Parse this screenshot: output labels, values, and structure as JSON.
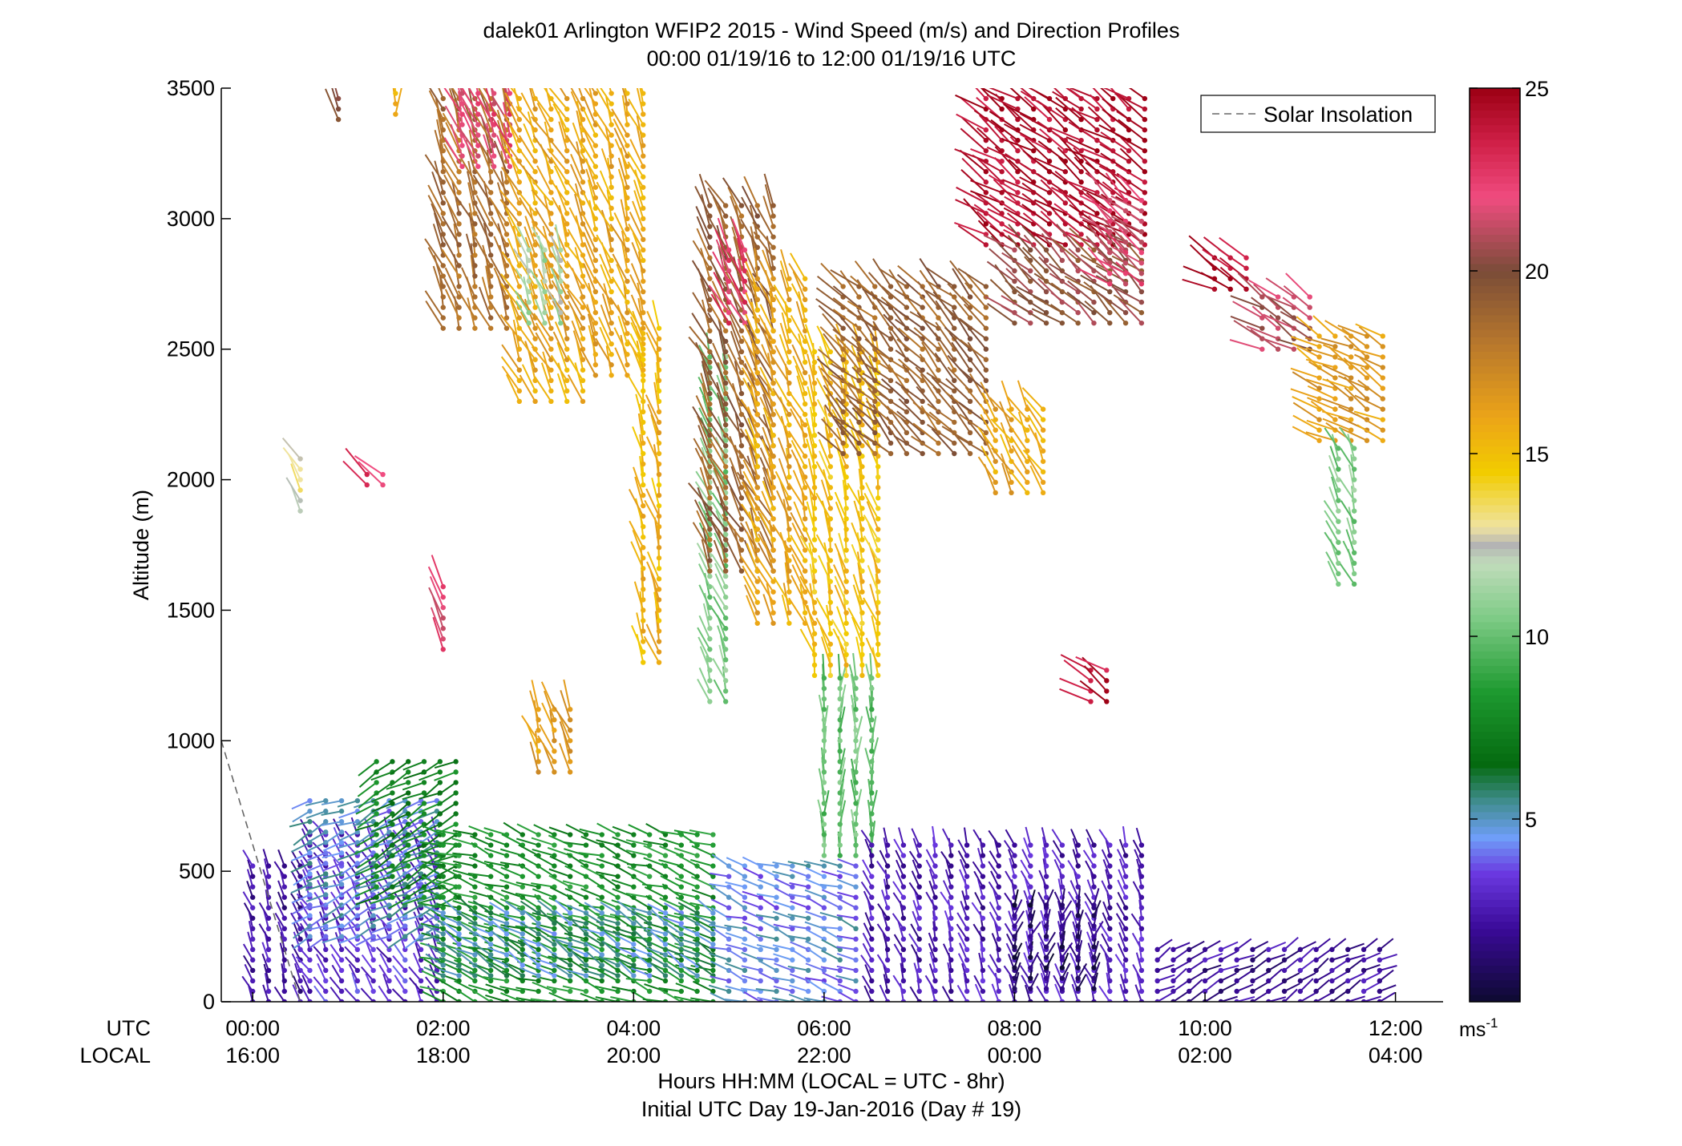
{
  "chart_data": {
    "type": "scatter",
    "title": "dalek01 Arlington WFIP2 2015 - Wind Speed (m/s) and Direction Profiles",
    "subtitle": "00:00 01/19/16 to 12:00 01/19/16  UTC",
    "ylabel": "Altitude (m)",
    "xlabel": "Hours HH:MM  (LOCAL = UTC - 8hr)",
    "xlabel2": "Initial UTC Day 19-Jan-2016 (Day # 19)",
    "xlim": [
      -0.33,
      12.5
    ],
    "ylim": [
      0,
      3500
    ],
    "yticks": [
      0,
      500,
      1000,
      1500,
      2000,
      2500,
      3000,
      3500
    ],
    "ytick_labels": [
      "0",
      "500",
      "1000",
      "1500",
      "2000",
      "2500",
      "3000",
      "3500"
    ],
    "xticks_utc": [
      0,
      2,
      4,
      6,
      8,
      10,
      12
    ],
    "row_label_utc": "UTC",
    "row_label_local": "LOCAL",
    "xtick_labels_utc": [
      "00:00",
      "02:00",
      "04:00",
      "06:00",
      "08:00",
      "10:00",
      "12:00"
    ],
    "xtick_labels_local": [
      "16:00",
      "18:00",
      "20:00",
      "22:00",
      "00:00",
      "02:00",
      "04:00"
    ],
    "legend": {
      "label": "Solar Insolation",
      "placement": "top-right"
    },
    "solar_insolation": {
      "x": [
        -0.33,
        0.5
      ],
      "y": [
        1000,
        0
      ]
    },
    "colorbar": {
      "range": [
        0,
        25
      ],
      "ticks": [
        5,
        10,
        15,
        20,
        25
      ],
      "tick_labels": [
        "5",
        "10",
        "15",
        "20",
        "25"
      ],
      "unit_label": "ms",
      "unit_exponent": "-1",
      "stops": [
        {
          "v": 0,
          "c": "#0d0a30"
        },
        {
          "v": 2,
          "c": "#3a0a98"
        },
        {
          "v": 3.5,
          "c": "#6a38e0"
        },
        {
          "v": 4.5,
          "c": "#6f9ef8"
        },
        {
          "v": 5.5,
          "c": "#3f8c8c"
        },
        {
          "v": 6.5,
          "c": "#056a10"
        },
        {
          "v": 8.5,
          "c": "#1e9a30"
        },
        {
          "v": 10.5,
          "c": "#7ecb86"
        },
        {
          "v": 12,
          "c": "#c0dcba"
        },
        {
          "v": 12.5,
          "c": "#b4b4b4"
        },
        {
          "v": 13,
          "c": "#f0e4a0"
        },
        {
          "v": 14.5,
          "c": "#f2cc00"
        },
        {
          "v": 16,
          "c": "#eca418"
        },
        {
          "v": 18,
          "c": "#b8782c"
        },
        {
          "v": 20,
          "c": "#7a4c38"
        },
        {
          "v": 22,
          "c": "#f04c80"
        },
        {
          "v": 23.5,
          "c": "#d02048"
        },
        {
          "v": 25,
          "c": "#9c0014"
        }
      ]
    },
    "profiles_note_blocks": [
      {
        "t0": 0.0,
        "t1": 0.6,
        "z0": 0,
        "z1": 520,
        "spd": 2.2,
        "dir": 200
      },
      {
        "t0": 0.6,
        "t1": 2.0,
        "z0": 0,
        "z1": 650,
        "spd": 3.0,
        "dir": 210
      },
      {
        "t0": 0.6,
        "t1": 2.0,
        "z0": 250,
        "z1": 800,
        "spd": 4.7,
        "dir": 295
      },
      {
        "t0": 1.3,
        "t1": 2.2,
        "z0": 400,
        "z1": 930,
        "spd": 7.5,
        "dir": 300
      },
      {
        "t0": 2.0,
        "t1": 5.0,
        "z0": 0,
        "z1": 650,
        "spd": 8.0,
        "dir": 250
      },
      {
        "t0": 2.0,
        "t1": 5.0,
        "z0": 100,
        "z1": 350,
        "spd": 5.2,
        "dir": 240
      },
      {
        "t0": 5.0,
        "t1": 6.5,
        "z0": 0,
        "z1": 550,
        "spd": 4.5,
        "dir": 250
      },
      {
        "t0": 6.0,
        "t1": 6.6,
        "z0": 560,
        "z1": 1250,
        "spd": 10.0,
        "dir": 180
      },
      {
        "t0": 6.5,
        "t1": 9.5,
        "z0": 0,
        "z1": 600,
        "spd": 2.5,
        "dir": 200
      },
      {
        "t0": 8.0,
        "t1": 9.0,
        "z0": 50,
        "z1": 400,
        "spd": 1.0,
        "dir": 160
      },
      {
        "t0": 9.5,
        "t1": 12.0,
        "z0": 0,
        "z1": 200,
        "spd": 2.0,
        "dir": 120
      },
      {
        "t0": 2.0,
        "t1": 2.8,
        "z0": 2580,
        "z1": 3480,
        "spd": 18.5,
        "dir": 200
      },
      {
        "t0": 2.2,
        "t1": 2.8,
        "z0": 3200,
        "z1": 3480,
        "spd": 22.0,
        "dir": 200
      },
      {
        "t0": 2.8,
        "t1": 3.6,
        "z0": 2300,
        "z1": 3480,
        "spd": 16.0,
        "dir": 205
      },
      {
        "t0": 2.9,
        "t1": 3.3,
        "z0": 2600,
        "z1": 2900,
        "spd": 11.5,
        "dir": 200
      },
      {
        "t0": 3.6,
        "t1": 4.2,
        "z0": 2400,
        "z1": 3480,
        "spd": 16.0,
        "dir": 200
      },
      {
        "t0": 4.1,
        "t1": 4.4,
        "z0": 1300,
        "z1": 2580,
        "spd": 15.5,
        "dir": 195
      },
      {
        "t0": 4.8,
        "t1": 5.0,
        "z0": 1150,
        "z1": 2500,
        "spd": 10.5,
        "dir": 200
      },
      {
        "t0": 4.8,
        "t1": 5.6,
        "z0": 1650,
        "z1": 3050,
        "spd": 19.0,
        "dir": 205
      },
      {
        "t0": 5.0,
        "t1": 5.3,
        "z0": 2600,
        "z1": 2900,
        "spd": 22.5,
        "dir": 205
      },
      {
        "t0": 5.3,
        "t1": 5.9,
        "z0": 1450,
        "z1": 2780,
        "spd": 16.0,
        "dir": 200
      },
      {
        "t0": 5.9,
        "t1": 6.6,
        "z0": 1250,
        "z1": 2500,
        "spd": 15.0,
        "dir": 195
      },
      {
        "t0": 6.2,
        "t1": 7.8,
        "z0": 2100,
        "z1": 2750,
        "spd": 19.0,
        "dir": 225
      },
      {
        "t0": 7.8,
        "t1": 8.4,
        "z0": 1950,
        "z1": 2300,
        "spd": 16.0,
        "dir": 210
      },
      {
        "t0": 7.7,
        "t1": 9.4,
        "z0": 2900,
        "z1": 3480,
        "spd": 24.5,
        "dir": 235
      },
      {
        "t0": 8.0,
        "t1": 9.4,
        "z0": 2600,
        "z1": 2900,
        "spd": 20.0,
        "dir": 230
      },
      {
        "t0": 9.0,
        "t1": 9.4,
        "z0": 2750,
        "z1": 3100,
        "spd": 22.0,
        "dir": 230
      },
      {
        "t0": 10.1,
        "t1": 10.5,
        "z0": 2730,
        "z1": 2880,
        "spd": 24.0,
        "dir": 240
      },
      {
        "t0": 10.6,
        "t1": 11.2,
        "z0": 2500,
        "z1": 2720,
        "spd": 21.0,
        "dir": 240
      },
      {
        "t0": 11.2,
        "t1": 11.9,
        "z0": 2150,
        "z1": 2580,
        "spd": 16.5,
        "dir": 240
      },
      {
        "t0": 11.4,
        "t1": 11.6,
        "z0": 1600,
        "z1": 2150,
        "spd": 10.5,
        "dir": 200
      },
      {
        "t0": 0.5,
        "t1": 0.65,
        "z0": 1880,
        "z1": 2080,
        "spd": 13.0,
        "dir": 210
      },
      {
        "t0": 1.2,
        "t1": 1.4,
        "z0": 1980,
        "z1": 2050,
        "spd": 22.5,
        "dir": 230
      },
      {
        "t0": 2.0,
        "t1": 2.1,
        "z0": 1350,
        "z1": 1620,
        "spd": 22.0,
        "dir": 210
      },
      {
        "t0": 3.0,
        "t1": 3.4,
        "z0": 880,
        "z1": 1150,
        "spd": 16.5,
        "dir": 200
      },
      {
        "t0": 8.8,
        "t1": 9.0,
        "z0": 1150,
        "z1": 1280,
        "spd": 24.0,
        "dir": 235
      },
      {
        "t0": 0.9,
        "t1": 1.0,
        "z0": 3380,
        "z1": 3480,
        "spd": 19.5,
        "dir": 210
      },
      {
        "t0": 1.5,
        "t1": 1.6,
        "z0": 3400,
        "z1": 3480,
        "spd": 15.5,
        "dir": 180
      }
    ]
  }
}
